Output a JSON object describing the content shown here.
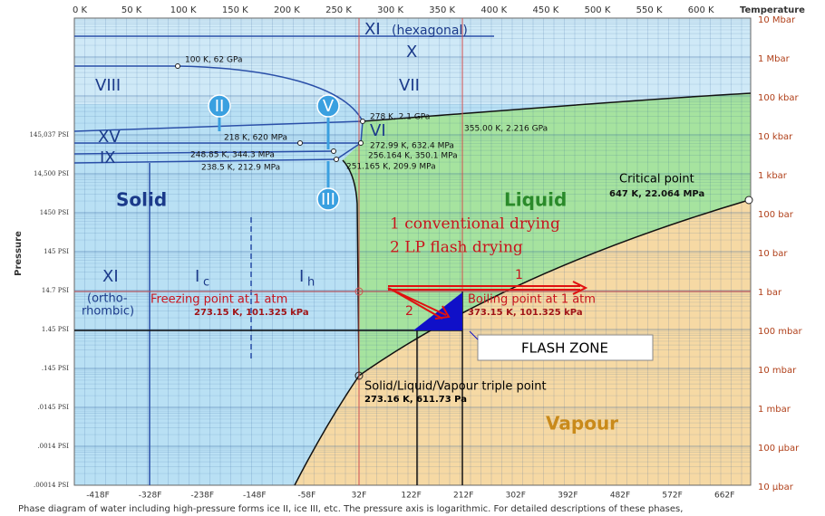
{
  "top_axis": {
    "ticks": [
      "0 K",
      "50 K",
      "100 K",
      "150 K",
      "200 K",
      "250 K",
      "300 K",
      "350 K",
      "400 K",
      "450 K",
      "500 K",
      "550 K",
      "600 K"
    ],
    "title": "Temperature"
  },
  "right_axis": [
    "10 Mbar",
    "1 Mbar",
    "100 kbar",
    "10 kbar",
    "1 kbar",
    "100 bar",
    "10 bar",
    "1 bar",
    "100 mbar",
    "10 mbar",
    "1 mbar",
    "100 µbar",
    "10 µbar"
  ],
  "left_axis": {
    "title": "Pressure",
    "ticks": [
      "145,037 PSI",
      "14,500 PSI",
      "1450 PSI",
      "145 PSI",
      "14.7 PSI",
      "1.45 PSI",
      ".145 PSI",
      ".0145 PSI",
      ".0014 PSI",
      ".00014 PSI"
    ]
  },
  "bottom_axis": [
    "-418F",
    "-328F",
    "-238F",
    "-148F",
    "-58F",
    "32F",
    "122F",
    "212F",
    "302F",
    "392F",
    "482F",
    "572F",
    "662F"
  ],
  "regions": {
    "xi_hex": "XI",
    "hexagonal": "(hexagonal)",
    "x": "X",
    "viii": "VIII",
    "vii": "VII",
    "ii": "II",
    "v": "V",
    "iii": "III",
    "xv": "XV",
    "vi": "VI",
    "ix": "IX",
    "solid": "Solid",
    "liquid": "Liquid",
    "vapour": "Vapour",
    "xi_ortho": "XI",
    "ortho": "(ortho-",
    "rhombic": "rhombic)",
    "ic": "I",
    "ic_sub": "c",
    "ih": "I",
    "ih_sub": "h"
  },
  "points": [
    "100 K, 62 GPa",
    "278 K, 2.1 GPa",
    "355.00 K, 2.216 GPa",
    "218 K, 620 MPa",
    "272.99 K, 632.4 MPa",
    "248.85 K, 344.3 MPa",
    "256.164 K, 350.1 MPa",
    "238.5 K, 212.9 MPa",
    "251.165 K, 209.9 MPa"
  ],
  "critical": {
    "title": "Critical point",
    "value": "647 K, 22.064 MPa"
  },
  "drying": {
    "method1": "1  conventional drying",
    "method2": "2  LP flash drying",
    "arrow1": "1",
    "arrow2": "2"
  },
  "freezing": {
    "title": "Freezing point at 1 atm",
    "value": "273.15 K, 101.325 kPa"
  },
  "boiling": {
    "title": "Boiling point at 1 atm",
    "value": "373.15 K, 101.325 kPa"
  },
  "flash_zone": "FLASH ZONE",
  "triple": {
    "title": "Solid/Liquid/Vapour triple point",
    "value": "273.16 K, 611.73 Pa"
  },
  "caption": "Phase diagram of water including high-pressure forms ice II, ice III, etc. The pressure axis is logarithmic. For detailed descriptions of these phases,"
}
